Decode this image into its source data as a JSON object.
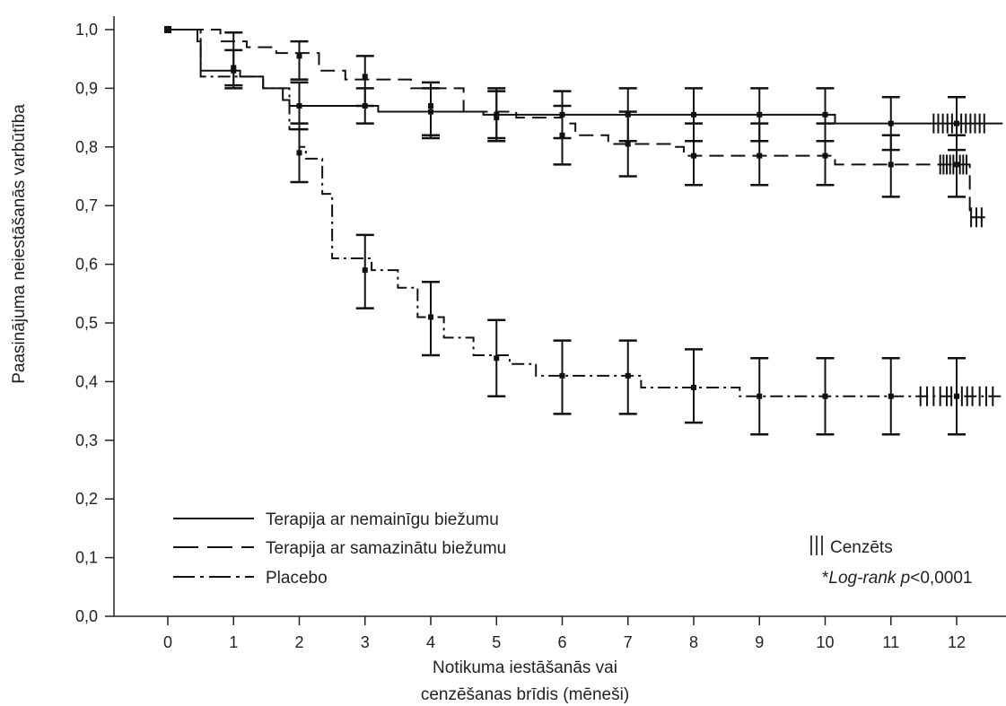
{
  "chart_data": {
    "type": "line",
    "subtype": "kaplan-meier",
    "title": "",
    "xlabel_line1": "Notikuma iestāšanās vai",
    "xlabel_line2": "cenzēšanas brīdis (mēneši)",
    "ylabel": "Paasinājuma neiestāšanās  varbūtība",
    "xlim": [
      -0.4,
      12.7
    ],
    "ylim": [
      0.0,
      1.0
    ],
    "x_ticks": [
      0,
      1,
      2,
      3,
      4,
      5,
      6,
      7,
      8,
      9,
      10,
      11,
      12
    ],
    "x_tick_labels": [
      "0",
      "1",
      "2",
      "3",
      "4",
      "5",
      "6",
      "7",
      "8",
      "9",
      "10",
      "11",
      "12"
    ],
    "y_ticks": [
      0.0,
      0.1,
      0.2,
      0.3,
      0.4,
      0.5,
      0.6,
      0.7,
      0.8,
      0.9,
      1.0
    ],
    "y_tick_labels": [
      "0,0",
      "0,1",
      "0,2",
      "0,3",
      "0,4",
      "0,5",
      "0,6",
      "0,7",
      "0,8",
      "0,9",
      "1,0"
    ],
    "grid": false,
    "legend_position": "bottom-left",
    "series": [
      {
        "name": "Terapija ar nemainīgu biežumu",
        "style": "solid",
        "steps": [
          [
            0,
            1.0
          ],
          [
            0.45,
            0.98
          ],
          [
            0.5,
            0.93
          ],
          [
            1.1,
            0.92
          ],
          [
            1.45,
            0.9
          ],
          [
            1.75,
            0.88
          ],
          [
            1.85,
            0.87
          ],
          [
            3.2,
            0.86
          ],
          [
            4.8,
            0.855
          ],
          [
            6.0,
            0.855
          ],
          [
            10.15,
            0.84
          ],
          [
            12.7,
            0.84
          ]
        ],
        "error_bars": [
          [
            1,
            0.93,
            0.965,
            0.905
          ],
          [
            2,
            0.87,
            0.91,
            0.83
          ],
          [
            3,
            0.87,
            0.9,
            0.84
          ],
          [
            4,
            0.86,
            0.9,
            0.82
          ],
          [
            5,
            0.855,
            0.895,
            0.815
          ],
          [
            6,
            0.855,
            0.895,
            0.815
          ],
          [
            7,
            0.855,
            0.9,
            0.81
          ],
          [
            8,
            0.855,
            0.9,
            0.81
          ],
          [
            9,
            0.855,
            0.9,
            0.81
          ],
          [
            10,
            0.855,
            0.9,
            0.81
          ],
          [
            11,
            0.84,
            0.885,
            0.795
          ],
          [
            12,
            0.84,
            0.885,
            0.795
          ]
        ],
        "censor_x": [
          11.65,
          11.72,
          11.79,
          11.86,
          11.93,
          12.0,
          12.07,
          12.14,
          12.21,
          12.28,
          12.35,
          12.42
        ]
      },
      {
        "name": "Terapija ar samazinātu biežumu",
        "style": "dashed",
        "steps": [
          [
            0,
            1.0
          ],
          [
            0.8,
            0.98
          ],
          [
            1.2,
            0.97
          ],
          [
            1.65,
            0.96
          ],
          [
            2.3,
            0.93
          ],
          [
            2.7,
            0.915
          ],
          [
            3.7,
            0.9
          ],
          [
            4.5,
            0.86
          ],
          [
            5.3,
            0.85
          ],
          [
            6.0,
            0.84
          ],
          [
            6.2,
            0.82
          ],
          [
            6.7,
            0.805
          ],
          [
            7.7,
            0.8
          ],
          [
            7.85,
            0.785
          ],
          [
            9.2,
            0.785
          ],
          [
            10.15,
            0.77
          ],
          [
            11.9,
            0.77
          ],
          [
            12.2,
            0.68
          ],
          [
            12.5,
            0.68
          ]
        ],
        "error_bars": [
          [
            1,
            0.935,
            0.995,
            0.9
          ],
          [
            2,
            0.955,
            0.98,
            0.915
          ],
          [
            3,
            0.92,
            0.955,
            0.87
          ],
          [
            4,
            0.87,
            0.91,
            0.815
          ],
          [
            5,
            0.85,
            0.9,
            0.81
          ],
          [
            6,
            0.82,
            0.87,
            0.77
          ],
          [
            7,
            0.805,
            0.86,
            0.75
          ],
          [
            8,
            0.785,
            0.84,
            0.735
          ],
          [
            9,
            0.785,
            0.84,
            0.735
          ],
          [
            10,
            0.785,
            0.84,
            0.735
          ],
          [
            11,
            0.77,
            0.82,
            0.715
          ],
          [
            12,
            0.77,
            0.82,
            0.715
          ]
        ],
        "censor_x": [
          11.75,
          11.8,
          11.85,
          11.9,
          11.95,
          12.0,
          12.05,
          12.1,
          12.15,
          12.22,
          12.3,
          12.38
        ]
      },
      {
        "name": "Placebo",
        "style": "dashdot",
        "steps": [
          [
            0,
            1.0
          ],
          [
            0.5,
            0.92
          ],
          [
            1.45,
            0.9
          ],
          [
            1.85,
            0.83
          ],
          [
            2.0,
            0.8
          ],
          [
            2.1,
            0.78
          ],
          [
            2.35,
            0.72
          ],
          [
            2.5,
            0.61
          ],
          [
            3.1,
            0.59
          ],
          [
            3.5,
            0.56
          ],
          [
            3.8,
            0.51
          ],
          [
            4.2,
            0.475
          ],
          [
            4.65,
            0.445
          ],
          [
            5.2,
            0.43
          ],
          [
            5.6,
            0.41
          ],
          [
            6.1,
            0.41
          ],
          [
            7.2,
            0.39
          ],
          [
            8.3,
            0.39
          ],
          [
            8.7,
            0.375
          ],
          [
            12.7,
            0.375
          ]
        ],
        "error_bars": [
          [
            2,
            0.79,
            0.84,
            0.74
          ],
          [
            3,
            0.59,
            0.65,
            0.525
          ],
          [
            4,
            0.51,
            0.57,
            0.445
          ],
          [
            5,
            0.44,
            0.505,
            0.375
          ],
          [
            6,
            0.41,
            0.47,
            0.345
          ],
          [
            7,
            0.41,
            0.47,
            0.345
          ],
          [
            8,
            0.39,
            0.455,
            0.33
          ],
          [
            9,
            0.375,
            0.44,
            0.31
          ],
          [
            10,
            0.375,
            0.44,
            0.31
          ],
          [
            11,
            0.375,
            0.44,
            0.31
          ],
          [
            12,
            0.375,
            0.44,
            0.31
          ]
        ],
        "censor_x": [
          11.45,
          11.55,
          11.65,
          11.75,
          11.85,
          11.92,
          12.0,
          12.08,
          12.16,
          12.24,
          12.35,
          12.45,
          12.55
        ]
      }
    ],
    "annotations": {
      "censor_label": "Cenzēts",
      "logrank_prefix": "*",
      "logrank_italic": "Log-rank p",
      "logrank_rest": "<0,0001"
    },
    "colors": {
      "line": "#111111",
      "text": "#222222"
    }
  }
}
